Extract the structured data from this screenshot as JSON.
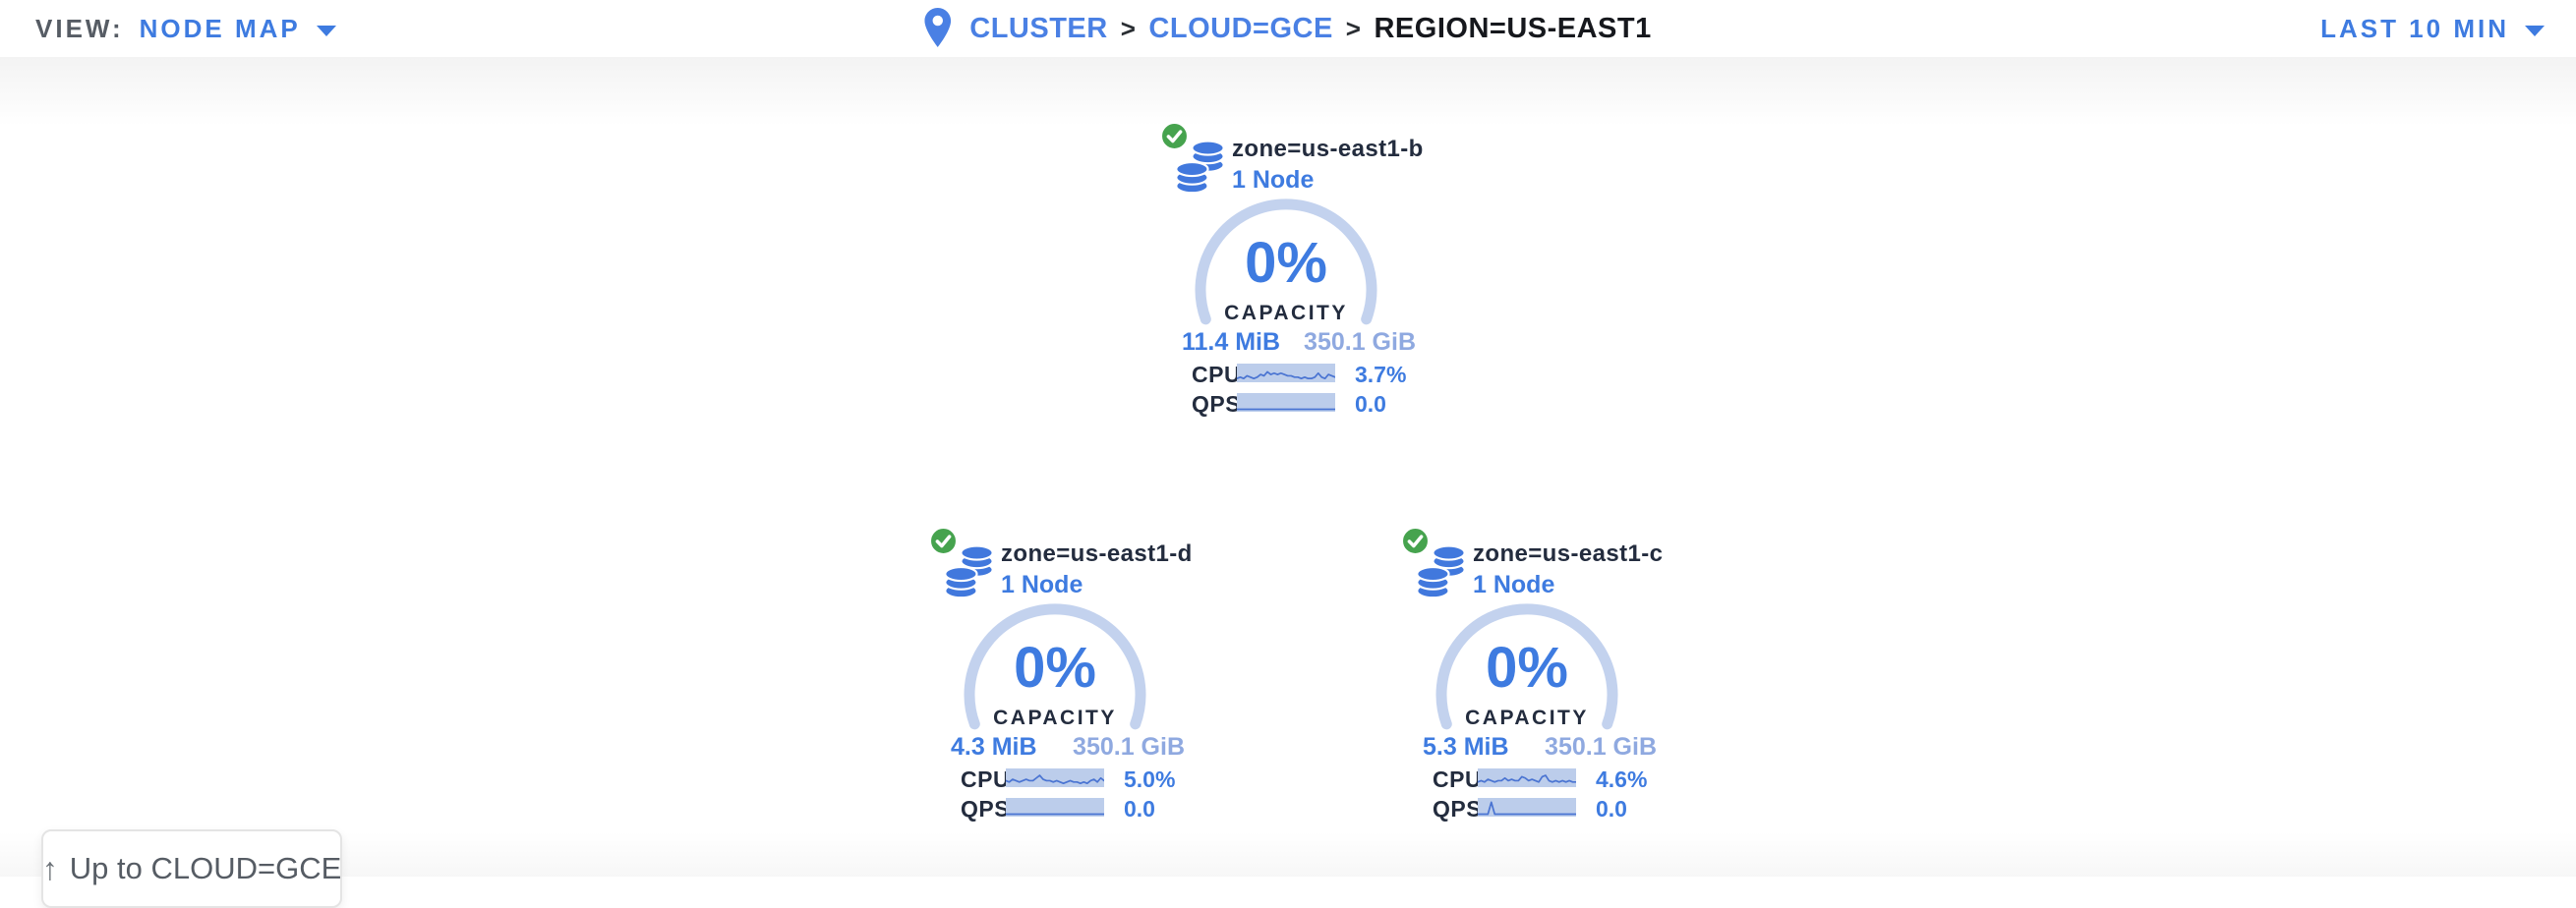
{
  "header": {
    "view_label": "VIEW:",
    "view_value": "NODE MAP",
    "breadcrumb": {
      "separator": ">",
      "items": [
        {
          "label": "CLUSTER"
        },
        {
          "label": "CLOUD=GCE"
        },
        {
          "label": "REGION=US-EAST1"
        }
      ]
    },
    "time_range": "LAST 10 MIN"
  },
  "zone_card_labels": {
    "capacity": "CAPACITY",
    "cpu": "CPU",
    "qps": "QPS"
  },
  "zones": [
    {
      "name": "zone=us-east1-b",
      "nodes": "1 Node",
      "capacity_pct": "0%",
      "used": "11.4 MiB",
      "total": "350.1 GiB",
      "cpu_value": "3.7%",
      "qps_value": "0.0",
      "cpu_spark": [
        1,
        2,
        1,
        3,
        2,
        1,
        2,
        4,
        3,
        6,
        4,
        5,
        4,
        5,
        4,
        3,
        3,
        2,
        2,
        1,
        2,
        1,
        1,
        2,
        5,
        2,
        1,
        4,
        3,
        2
      ],
      "qps_spark": [
        0,
        0,
        0,
        0,
        0,
        0,
        0,
        0,
        0,
        0,
        0,
        0,
        0,
        0,
        0,
        0,
        0,
        0,
        0,
        0,
        0,
        0,
        0,
        0,
        0,
        0,
        0,
        0,
        0,
        0
      ]
    },
    {
      "name": "zone=us-east1-d",
      "nodes": "1 Node",
      "capacity_pct": "0%",
      "used": "4.3 MiB",
      "total": "350.1 GiB",
      "cpu_value": "5.0%",
      "qps_value": "0.0",
      "cpu_spark": [
        3,
        2,
        4,
        3,
        2,
        3,
        4,
        3,
        3,
        5,
        7,
        4,
        3,
        3,
        2,
        3,
        2,
        1,
        2,
        3,
        2,
        2,
        1,
        2,
        1,
        3,
        4,
        2,
        5,
        3
      ],
      "qps_spark": [
        0,
        0,
        0,
        0,
        0,
        0,
        0,
        0,
        0,
        0,
        0,
        0,
        0,
        0,
        0,
        0,
        0,
        0,
        0,
        0,
        0,
        0,
        0,
        0,
        0,
        0,
        0,
        0,
        0,
        0
      ]
    },
    {
      "name": "zone=us-east1-c",
      "nodes": "1 Node",
      "capacity_pct": "0%",
      "used": "5.3 MiB",
      "total": "350.1 GiB",
      "cpu_value": "4.6%",
      "qps_value": "0.0",
      "cpu_spark": [
        2,
        3,
        2,
        4,
        3,
        2,
        3,
        3,
        5,
        3,
        4,
        3,
        3,
        6,
        5,
        3,
        4,
        3,
        2,
        6,
        7,
        3,
        2,
        3,
        2,
        3,
        2,
        3,
        2,
        2
      ],
      "qps_spark": [
        0,
        0,
        0,
        0,
        9,
        0,
        0,
        0,
        0,
        0,
        0,
        0,
        0,
        0,
        0,
        0,
        0,
        0,
        0,
        0,
        0,
        0,
        0,
        0,
        0,
        0,
        0,
        0,
        0,
        0
      ]
    }
  ],
  "up_button": {
    "label": "Up to CLOUD=GCE",
    "icon": "arrow-up"
  },
  "colors": {
    "accent_blue": "#3e7be0",
    "link_blue": "#4a80e4",
    "navy": "#232c3e",
    "breadcrumb_current": "#16181d",
    "gray_text": "#565c64",
    "arc_blue": "#c3d2ee",
    "spark_bg": "#bccdeb",
    "spark_line": "#4a74d2",
    "total_blue": "#8fa9e0",
    "green": "#46a34e",
    "icon_blue": "#4178dd"
  }
}
